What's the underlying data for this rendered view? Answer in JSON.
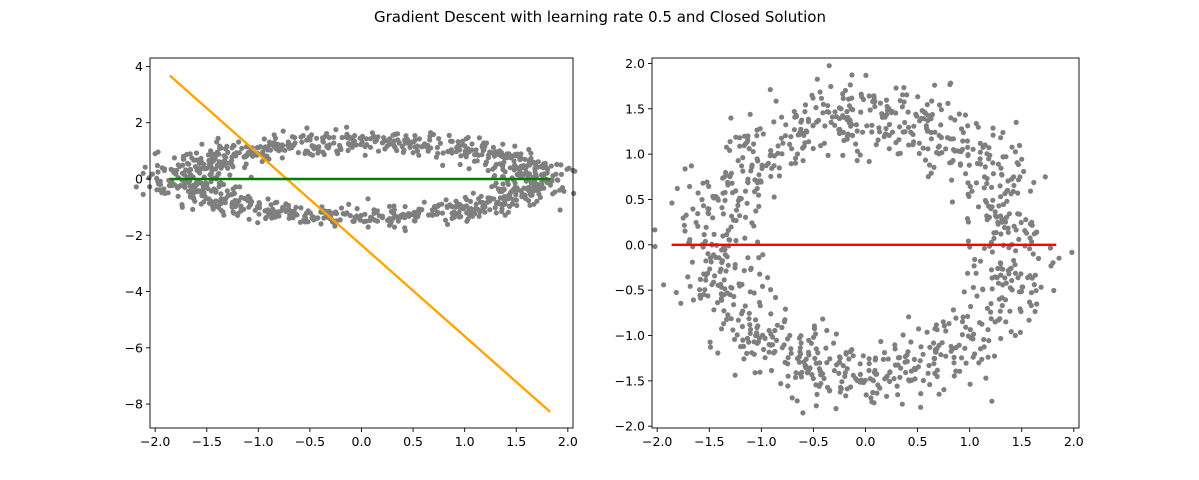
{
  "figure": {
    "title": "Gradient Descent with learning rate 0.5 and Closed Solution"
  },
  "colors": {
    "points": "#7f7f7f",
    "gd_line": "#ffa500",
    "left_closed_line": "#008000",
    "right_line": "#ff0000",
    "axis": "#000000",
    "background": "#ffffff"
  },
  "chart_data": [
    {
      "type": "scatter",
      "title": "",
      "xlabel": "",
      "ylabel": "",
      "xlim": [
        -2.05,
        2.05
      ],
      "ylim": [
        -8.85,
        4.3
      ],
      "grid": false,
      "xticks": [
        -2.0,
        -1.5,
        -1.0,
        -0.5,
        0.0,
        0.5,
        1.0,
        1.5,
        2.0
      ],
      "xtick_labels": [
        "−2.0",
        "−1.5",
        "−1.0",
        "−0.5",
        "0.0",
        "0.5",
        "1.0",
        "1.5",
        "2.0"
      ],
      "yticks": [
        4,
        2,
        0,
        -2,
        -4,
        -6,
        -8
      ],
      "ytick_labels": [
        "4",
        "2",
        "0",
        "−2",
        "−4",
        "−6",
        "−8"
      ],
      "scatter": {
        "description": "noisy elliptical ring of ~1000 points",
        "shape": "ellipse",
        "center": [
          0.0,
          0.0
        ],
        "semi_axes": [
          1.7,
          1.35
        ],
        "noise": 0.2,
        "count": 1000
      },
      "lines": [
        {
          "x": [
            -1.85,
            1.82
          ],
          "y": [
            3.65,
            -8.25
          ],
          "color": "#ffa500"
        },
        {
          "x": [
            -1.85,
            1.82
          ],
          "y": [
            0.0,
            0.0
          ],
          "color": "#008000"
        }
      ]
    },
    {
      "type": "scatter",
      "title": "",
      "xlabel": "",
      "ylabel": "",
      "xlim": [
        -2.05,
        2.05
      ],
      "ylim": [
        -2.02,
        2.06
      ],
      "grid": false,
      "xticks": [
        -2.0,
        -1.5,
        -1.0,
        -0.5,
        0.0,
        0.5,
        1.0,
        1.5,
        2.0
      ],
      "xtick_labels": [
        "−2.0",
        "−1.5",
        "−1.0",
        "−0.5",
        "0.0",
        "0.5",
        "1.0",
        "1.5",
        "2.0"
      ],
      "yticks": [
        2.0,
        1.5,
        1.0,
        0.5,
        0.0,
        -0.5,
        -1.0,
        -1.5,
        -2.0
      ],
      "ytick_labels": [
        "2.0",
        "1.5",
        "1.0",
        "0.5",
        "0.0",
        "−0.5",
        "−1.0",
        "−1.5",
        "−2.0"
      ],
      "scatter": {
        "description": "noisy circular ring of ~1000 points",
        "shape": "ellipse",
        "center": [
          0.0,
          0.0
        ],
        "semi_axes": [
          1.45,
          1.45
        ],
        "noise": 0.2,
        "count": 1000
      },
      "lines": [
        {
          "x": [
            -1.85,
            1.82
          ],
          "y": [
            0.0,
            0.0
          ],
          "color": "#ff0000"
        }
      ]
    }
  ]
}
